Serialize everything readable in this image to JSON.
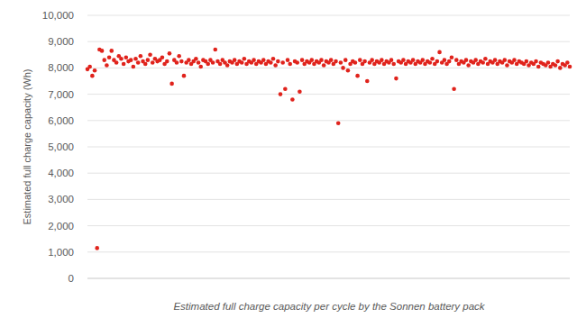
{
  "chart_data": {
    "type": "scatter",
    "title": "Estimated full charge capacity per cycle by the Sonnen battery pack",
    "ylabel": "Estimated full charge capacity (Wh)",
    "color": "#e0231c",
    "marker": "circle",
    "grid": true,
    "tick_labels": "y",
    "xlim": [
      0,
      200
    ],
    "ylim": [
      0,
      10000
    ],
    "yticks": [
      0,
      {
        "value": 1000,
        "label": "1,000"
      },
      {
        "value": 2000,
        "label": "2,000"
      },
      {
        "value": 3000,
        "label": "3,000"
      },
      {
        "value": 4000,
        "label": "4,000"
      },
      {
        "value": 5000,
        "label": "5,000"
      },
      {
        "value": 6000,
        "label": "6,000"
      },
      {
        "value": 7000,
        "label": "7,000"
      },
      {
        "value": 8000,
        "label": "8,000"
      },
      {
        "value": 9000,
        "label": "9,000"
      },
      {
        "value": 10000,
        "label": "10,000"
      }
    ],
    "x": [
      0,
      1,
      2,
      3,
      4,
      5,
      6,
      7,
      8,
      9,
      10,
      11,
      12,
      13,
      14,
      15,
      16,
      17,
      18,
      19,
      20,
      21,
      22,
      23,
      24,
      25,
      26,
      27,
      28,
      29,
      30,
      31,
      32,
      33,
      34,
      35,
      36,
      37,
      38,
      39,
      40,
      41,
      42,
      43,
      44,
      45,
      46,
      47,
      48,
      49,
      50,
      51,
      52,
      53,
      54,
      55,
      56,
      57,
      58,
      59,
      60,
      61,
      62,
      63,
      64,
      65,
      66,
      67,
      68,
      69,
      70,
      71,
      72,
      73,
      74,
      75,
      76,
      77,
      78,
      79,
      80,
      81,
      82,
      83,
      84,
      85,
      86,
      87,
      88,
      89,
      90,
      91,
      92,
      93,
      94,
      95,
      96,
      97,
      98,
      99,
      100,
      101,
      102,
      103,
      104,
      105,
      106,
      107,
      108,
      109,
      110,
      111,
      112,
      113,
      114,
      115,
      116,
      117,
      118,
      119,
      120,
      121,
      122,
      123,
      124,
      125,
      126,
      127,
      128,
      129,
      130,
      131,
      132,
      133,
      134,
      135,
      136,
      137,
      138,
      139,
      140,
      141,
      142,
      143,
      144,
      145,
      146,
      147,
      148,
      149,
      150,
      151,
      152,
      153,
      154,
      155,
      156,
      157,
      158,
      159,
      160,
      161,
      162,
      163,
      164,
      165,
      166,
      167,
      168,
      169,
      170,
      171,
      172,
      173,
      174,
      175,
      176,
      177,
      178,
      179,
      180,
      181,
      182,
      183,
      184,
      185,
      186,
      187,
      188,
      189,
      190,
      191,
      192,
      193,
      194,
      195,
      196,
      197,
      198,
      199,
      200
    ],
    "values": [
      7950,
      8050,
      7700,
      7900,
      1150,
      8700,
      8650,
      8300,
      8100,
      8400,
      8650,
      8300,
      8200,
      8450,
      8350,
      8150,
      8400,
      8250,
      8300,
      8050,
      8350,
      8200,
      8450,
      8250,
      8150,
      8300,
      8500,
      8200,
      8350,
      8250,
      8300,
      8400,
      8150,
      8250,
      8550,
      7400,
      8300,
      8200,
      8450,
      8250,
      7700,
      8200,
      8300,
      8150,
      8250,
      8350,
      8200,
      8050,
      8300,
      8250,
      8150,
      8300,
      8200,
      8700,
      8250,
      8150,
      8300,
      8200,
      8100,
      8250,
      8200,
      8300,
      8150,
      8250,
      8200,
      8350,
      8150,
      8250,
      8200,
      8300,
      8150,
      8250,
      8200,
      8300,
      8150,
      8250,
      8200,
      8350,
      8100,
      8250,
      7000,
      8200,
      7200,
      8300,
      8150,
      6800,
      8250,
      8200,
      7100,
      8300,
      8150,
      8250,
      8200,
      8300,
      8150,
      8250,
      8200,
      8300,
      8100,
      8250,
      8200,
      8300,
      8150,
      8250,
      5900,
      8200,
      8000,
      8300,
      7900,
      8150,
      8250,
      8200,
      7700,
      8300,
      8150,
      8250,
      7500,
      8200,
      8300,
      8150,
      8250,
      8200,
      8300,
      8150,
      8250,
      8200,
      8300,
      8150,
      7600,
      8250,
      8200,
      8300,
      8150,
      8250,
      8200,
      8300,
      8150,
      8250,
      8200,
      8300,
      8150,
      8250,
      8200,
      8350,
      8150,
      8250,
      8600,
      8200,
      8300,
      8150,
      8250,
      8400,
      7200,
      8300,
      8150,
      8250,
      8200,
      8300,
      8100,
      8250,
      8200,
      8300,
      8150,
      8250,
      8200,
      8350,
      8150,
      8250,
      8200,
      8300,
      8150,
      8250,
      8200,
      8300,
      8100,
      8250,
      8200,
      8300,
      8150,
      8250,
      8200,
      8150,
      8250,
      8100,
      8200,
      8150,
      8250,
      8050,
      8200,
      8150,
      8100,
      8200,
      8050,
      8150,
      8100,
      8250,
      8000,
      8150,
      8100,
      8200,
      8050
    ]
  }
}
